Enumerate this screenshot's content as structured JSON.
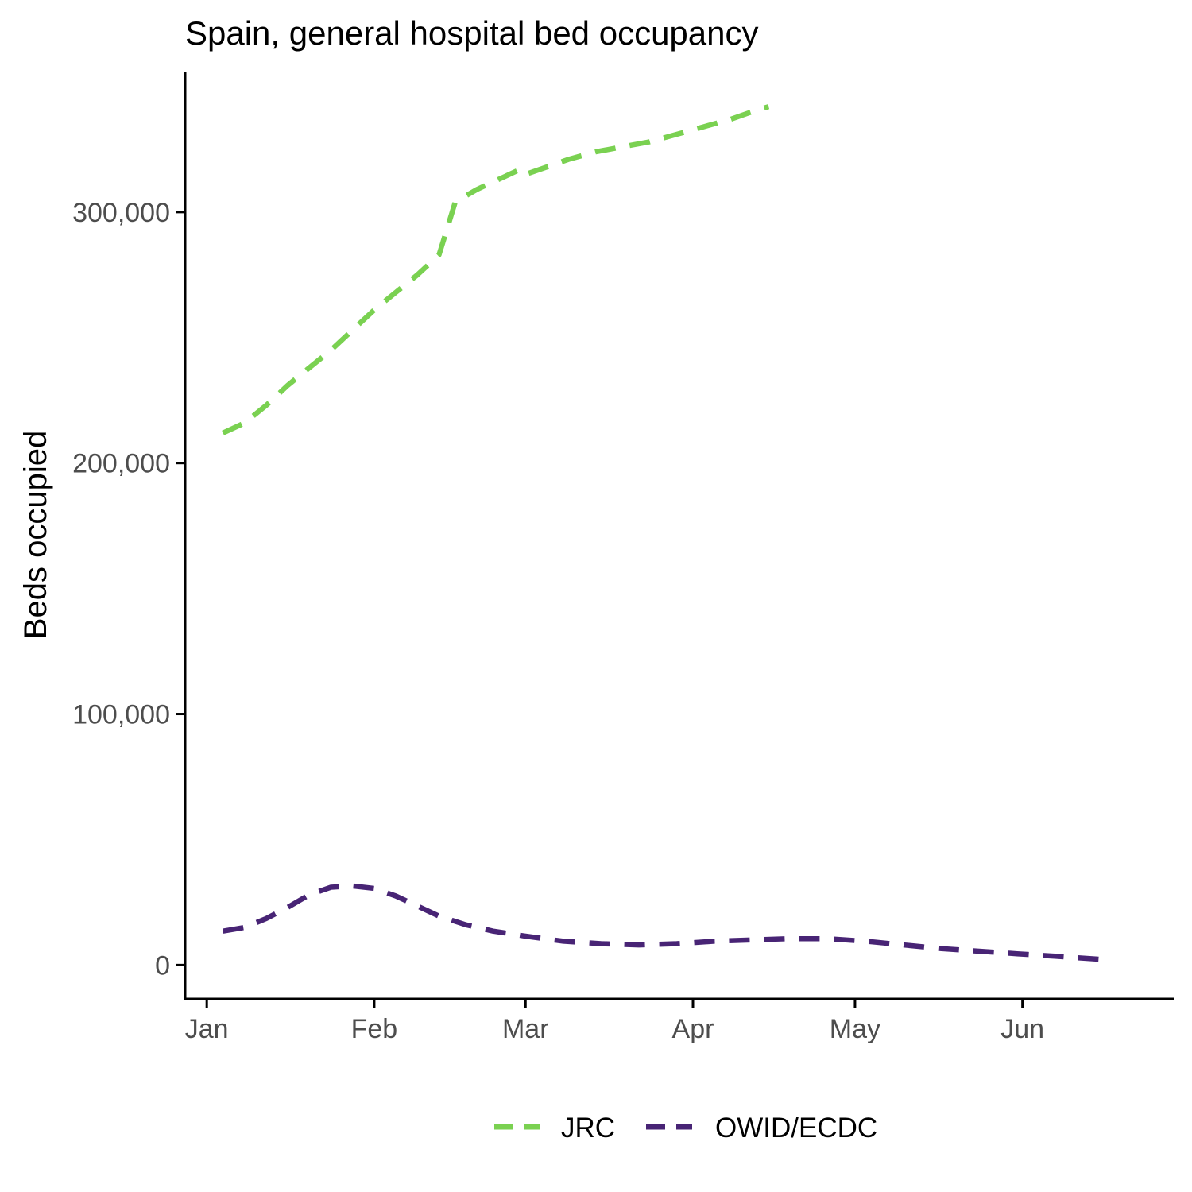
{
  "chart_data": {
    "type": "line",
    "title": "Spain, general hospital bed occupancy",
    "xlabel": "",
    "ylabel": "Beds occupied",
    "x_ticks": [
      "Jan",
      "Feb",
      "Mar",
      "Apr",
      "May",
      "Jun"
    ],
    "y_ticks": [
      "0",
      "100,000",
      "200,000",
      "300,000"
    ],
    "ylim": [
      -13500,
      356000
    ],
    "xlim": [
      "2020-12-28",
      "2021-06-29"
    ],
    "legend_position": "bottom",
    "grid": false,
    "series": [
      {
        "name": "JRC",
        "color": "#7ad151",
        "points": [
          [
            "2021-01-04",
            212000
          ],
          [
            "2021-01-08",
            216000
          ],
          [
            "2021-01-12",
            223000
          ],
          [
            "2021-01-16",
            231000
          ],
          [
            "2021-01-20",
            238000
          ],
          [
            "2021-01-24",
            245000
          ],
          [
            "2021-01-28",
            253000
          ],
          [
            "2021-02-01",
            261000
          ],
          [
            "2021-02-05",
            268000
          ],
          [
            "2021-02-09",
            275000
          ],
          [
            "2021-02-13",
            283000
          ],
          [
            "2021-02-16",
            304000
          ],
          [
            "2021-02-20",
            309000
          ],
          [
            "2021-02-24",
            313000
          ],
          [
            "2021-02-28",
            317000
          ],
          [
            "2021-03-01",
            315000
          ],
          [
            "2021-03-05",
            318000
          ],
          [
            "2021-03-09",
            321000
          ],
          [
            "2021-03-14",
            324000
          ],
          [
            "2021-03-19",
            326000
          ],
          [
            "2021-03-24",
            328000
          ],
          [
            "2021-03-29",
            331000
          ],
          [
            "2021-04-03",
            334000
          ],
          [
            "2021-04-08",
            337000
          ],
          [
            "2021-04-12",
            340000
          ],
          [
            "2021-04-15",
            342000
          ]
        ]
      },
      {
        "name": "OWID/ECDC",
        "color": "#482475",
        "points": [
          [
            "2021-01-04",
            13500
          ],
          [
            "2021-01-08",
            15000
          ],
          [
            "2021-01-12",
            18500
          ],
          [
            "2021-01-16",
            23000
          ],
          [
            "2021-01-20",
            28000
          ],
          [
            "2021-01-24",
            31000
          ],
          [
            "2021-01-28",
            31500
          ],
          [
            "2021-02-01",
            30500
          ],
          [
            "2021-02-05",
            27500
          ],
          [
            "2021-02-09",
            23500
          ],
          [
            "2021-02-13",
            19500
          ],
          [
            "2021-02-18",
            16000
          ],
          [
            "2021-02-23",
            13500
          ],
          [
            "2021-03-01",
            11500
          ],
          [
            "2021-03-08",
            9500
          ],
          [
            "2021-03-15",
            8500
          ],
          [
            "2021-03-22",
            8000
          ],
          [
            "2021-03-29",
            8500
          ],
          [
            "2021-04-05",
            9500
          ],
          [
            "2021-04-12",
            10000
          ],
          [
            "2021-04-19",
            10500
          ],
          [
            "2021-04-26",
            10500
          ],
          [
            "2021-05-03",
            9500
          ],
          [
            "2021-05-10",
            8000
          ],
          [
            "2021-05-17",
            6500
          ],
          [
            "2021-05-24",
            5500
          ],
          [
            "2021-05-31",
            4500
          ],
          [
            "2021-06-07",
            3500
          ],
          [
            "2021-06-14",
            2500
          ],
          [
            "2021-06-17",
            2000
          ]
        ]
      }
    ]
  }
}
